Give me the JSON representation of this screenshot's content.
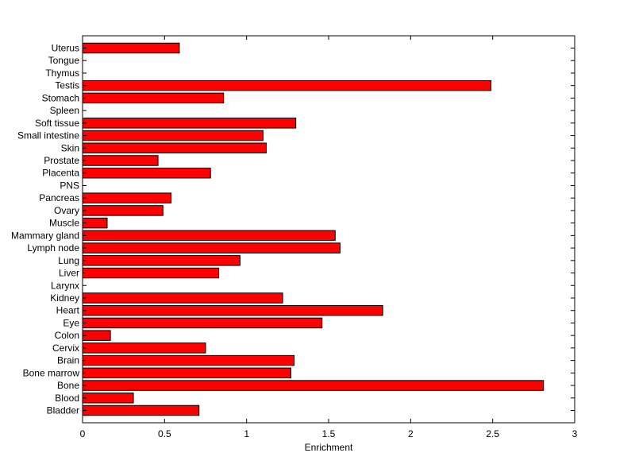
{
  "chart_data": {
    "type": "bar",
    "orientation": "horizontal",
    "xlabel": "Enrichment",
    "ylabel": "",
    "title": "",
    "xlim": [
      0,
      3
    ],
    "xticks": [
      "0",
      "0.5",
      "1",
      "1.5",
      "2",
      "2.5",
      "3"
    ],
    "grid": false,
    "bar_color": "#ff0000",
    "categories": [
      "Bladder",
      "Blood",
      "Bone",
      "Bone marrow",
      "Brain",
      "Cervix",
      "Colon",
      "Eye",
      "Heart",
      "Kidney",
      "Larynx",
      "Liver",
      "Lung",
      "Lymph node",
      "Mammary gland",
      "Muscle",
      "Ovary",
      "Pancreas",
      "PNS",
      "Placenta",
      "Prostate",
      "Skin",
      "Small intestine",
      "Soft tissue",
      "Spleen",
      "Stomach",
      "Testis",
      "Thymus",
      "Tongue",
      "Uterus"
    ],
    "values": [
      0.71,
      0.31,
      2.81,
      1.27,
      1.29,
      0.75,
      0.17,
      1.46,
      1.83,
      1.22,
      0,
      0.83,
      0.96,
      1.57,
      1.54,
      0.15,
      0.49,
      0.54,
      0,
      0.78,
      0.46,
      1.12,
      1.1,
      1.3,
      0,
      0.86,
      2.49,
      0,
      0,
      0.59
    ]
  }
}
